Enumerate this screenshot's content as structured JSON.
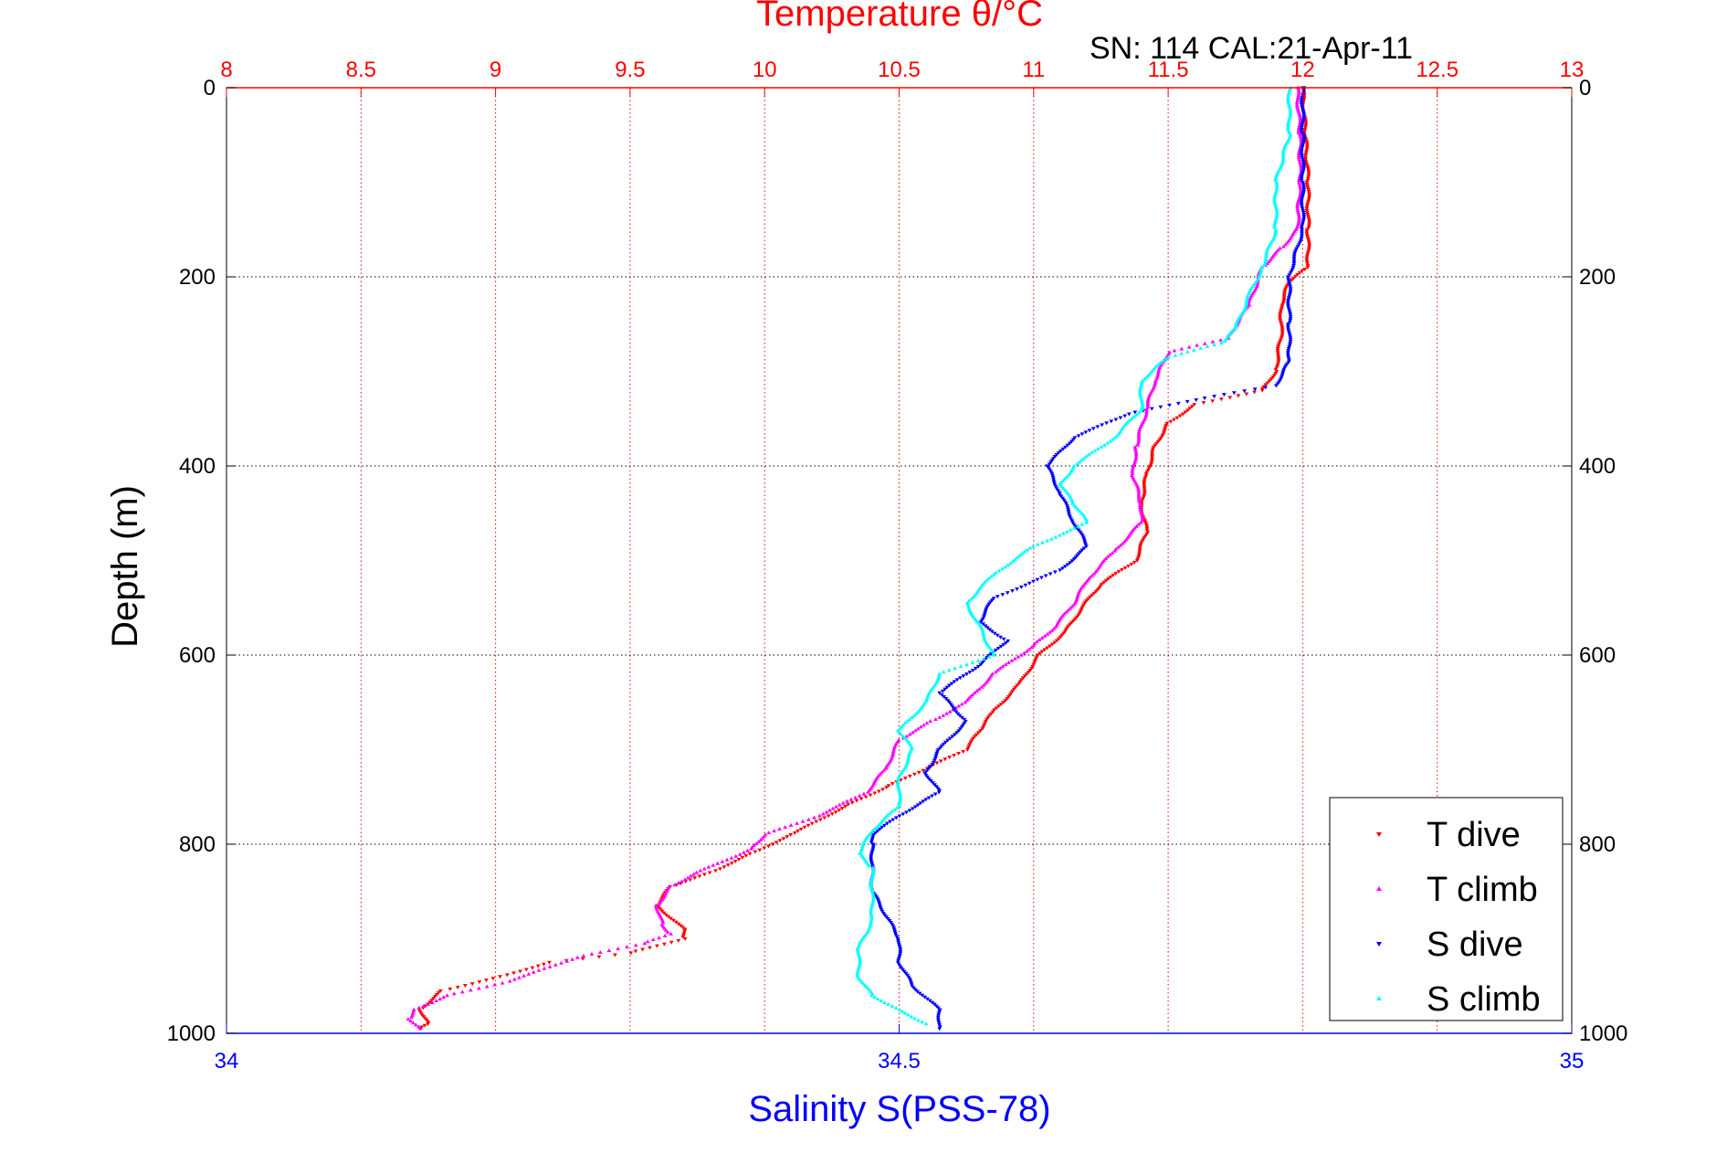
{
  "chart_data": {
    "type": "scatter",
    "top_axis_label": "Temperature θ/°C",
    "bottom_axis_label": "Salinity S(PSS-78)",
    "ylabel": "Depth (m)",
    "header_note": "SN: 114  CAL:21-Apr-11",
    "temperature_axis": {
      "range": [
        8,
        13
      ],
      "ticks": [
        "8",
        "8.5",
        "9",
        "9.5",
        "10",
        "10.5",
        "11",
        "11.5",
        "12",
        "12.5",
        "13"
      ],
      "color": "#ff0000"
    },
    "salinity_axis": {
      "range": [
        34,
        35
      ],
      "ticks": [
        "34",
        "34.5",
        "35"
      ],
      "color": "#0000ff"
    },
    "depth_axis": {
      "range": [
        0,
        1000
      ],
      "reversed": true,
      "ticks": [
        "0",
        "200",
        "400",
        "600",
        "800",
        "1000"
      ]
    },
    "grid": true,
    "legend_position": "bottom-right",
    "series": [
      {
        "name": "T dive",
        "axis": "temperature",
        "color": "#ff0000",
        "marker": "▾",
        "points": [
          [
            12.0,
            0
          ],
          [
            12.01,
            50
          ],
          [
            12.02,
            100
          ],
          [
            12.02,
            150
          ],
          [
            12.02,
            190
          ],
          [
            11.95,
            205
          ],
          [
            11.92,
            230
          ],
          [
            11.92,
            260
          ],
          [
            11.9,
            300
          ],
          [
            11.85,
            320
          ],
          [
            11.6,
            335
          ],
          [
            11.5,
            355
          ],
          [
            11.45,
            380
          ],
          [
            11.42,
            410
          ],
          [
            11.4,
            440
          ],
          [
            11.42,
            470
          ],
          [
            11.38,
            500
          ],
          [
            11.25,
            525
          ],
          [
            11.18,
            550
          ],
          [
            11.12,
            575
          ],
          [
            11.02,
            600
          ],
          [
            10.95,
            630
          ],
          [
            10.85,
            660
          ],
          [
            10.8,
            680
          ],
          [
            10.75,
            700
          ],
          [
            10.6,
            720
          ],
          [
            10.45,
            740
          ],
          [
            10.3,
            760
          ],
          [
            10.1,
            790
          ],
          [
            9.95,
            810
          ],
          [
            9.8,
            830
          ],
          [
            9.65,
            845
          ],
          [
            9.6,
            865
          ],
          [
            9.7,
            890
          ],
          [
            9.7,
            900
          ],
          [
            9.5,
            915
          ],
          [
            9.2,
            925
          ],
          [
            9.02,
            940
          ],
          [
            8.8,
            955
          ],
          [
            8.72,
            975
          ],
          [
            8.75,
            990
          ],
          [
            8.72,
            995
          ]
        ]
      },
      {
        "name": "T climb",
        "axis": "temperature",
        "color": "#ff00ff",
        "marker": "▴",
        "points": [
          [
            11.98,
            0
          ],
          [
            11.99,
            50
          ],
          [
            11.99,
            100
          ],
          [
            11.98,
            150
          ],
          [
            11.92,
            170
          ],
          [
            11.85,
            190
          ],
          [
            11.8,
            230
          ],
          [
            11.72,
            265
          ],
          [
            11.5,
            280
          ],
          [
            11.45,
            310
          ],
          [
            11.42,
            340
          ],
          [
            11.38,
            380
          ],
          [
            11.37,
            410
          ],
          [
            11.4,
            440
          ],
          [
            11.4,
            460
          ],
          [
            11.3,
            490
          ],
          [
            11.2,
            520
          ],
          [
            11.15,
            545
          ],
          [
            11.08,
            570
          ],
          [
            11.0,
            590
          ],
          [
            10.85,
            620
          ],
          [
            10.75,
            650
          ],
          [
            10.62,
            670
          ],
          [
            10.5,
            690
          ],
          [
            10.45,
            720
          ],
          [
            10.38,
            745
          ],
          [
            10.2,
            770
          ],
          [
            10.0,
            790
          ],
          [
            9.95,
            805
          ],
          [
            9.75,
            830
          ],
          [
            9.65,
            845
          ],
          [
            9.6,
            865
          ],
          [
            9.62,
            885
          ],
          [
            9.65,
            895
          ],
          [
            9.55,
            905
          ],
          [
            9.3,
            920
          ],
          [
            9.05,
            945
          ],
          [
            8.82,
            960
          ],
          [
            8.7,
            975
          ],
          [
            8.68,
            985
          ],
          [
            8.72,
            995
          ]
        ]
      },
      {
        "name": "S dive",
        "axis": "salinity",
        "color": "#0000ff",
        "marker": "▾",
        "points": [
          [
            34.8,
            0
          ],
          [
            34.8,
            50
          ],
          [
            34.8,
            100
          ],
          [
            34.8,
            150
          ],
          [
            34.79,
            200
          ],
          [
            34.79,
            250
          ],
          [
            34.79,
            290
          ],
          [
            34.78,
            315
          ],
          [
            34.72,
            330
          ],
          [
            34.67,
            345
          ],
          [
            34.63,
            370
          ],
          [
            34.61,
            400
          ],
          [
            34.62,
            430
          ],
          [
            34.63,
            460
          ],
          [
            34.64,
            485
          ],
          [
            34.62,
            510
          ],
          [
            34.57,
            540
          ],
          [
            34.56,
            565
          ],
          [
            34.58,
            585
          ],
          [
            34.56,
            610
          ],
          [
            34.53,
            640
          ],
          [
            34.55,
            670
          ],
          [
            34.53,
            700
          ],
          [
            34.52,
            725
          ],
          [
            34.53,
            745
          ],
          [
            34.5,
            770
          ],
          [
            34.48,
            790
          ],
          [
            34.48,
            800
          ],
          [
            34.48,
            825
          ],
          [
            34.48,
            850
          ],
          [
            34.49,
            875
          ],
          [
            34.5,
            900
          ],
          [
            34.5,
            925
          ],
          [
            34.51,
            950
          ],
          [
            34.53,
            975
          ],
          [
            34.53,
            995
          ]
        ]
      },
      {
        "name": "S climb",
        "axis": "salinity",
        "color": "#00ffff",
        "marker": "▴",
        "points": [
          [
            34.79,
            0
          ],
          [
            34.79,
            50
          ],
          [
            34.78,
            100
          ],
          [
            34.78,
            150
          ],
          [
            34.77,
            190
          ],
          [
            34.76,
            220
          ],
          [
            34.75,
            255
          ],
          [
            34.74,
            270
          ],
          [
            34.7,
            285
          ],
          [
            34.68,
            310
          ],
          [
            34.68,
            340
          ],
          [
            34.66,
            370
          ],
          [
            34.63,
            400
          ],
          [
            34.62,
            420
          ],
          [
            34.63,
            440
          ],
          [
            34.64,
            460
          ],
          [
            34.6,
            485
          ],
          [
            34.57,
            515
          ],
          [
            34.55,
            545
          ],
          [
            34.56,
            570
          ],
          [
            34.57,
            600
          ],
          [
            34.53,
            620
          ],
          [
            34.52,
            650
          ],
          [
            34.5,
            680
          ],
          [
            34.51,
            700
          ],
          [
            34.5,
            730
          ],
          [
            34.5,
            760
          ],
          [
            34.48,
            785
          ],
          [
            34.47,
            810
          ],
          [
            34.48,
            825
          ],
          [
            34.48,
            850
          ],
          [
            34.48,
            880
          ],
          [
            34.47,
            910
          ],
          [
            34.47,
            940
          ],
          [
            34.48,
            960
          ],
          [
            34.5,
            975
          ],
          [
            34.52,
            990
          ]
        ]
      }
    ]
  }
}
